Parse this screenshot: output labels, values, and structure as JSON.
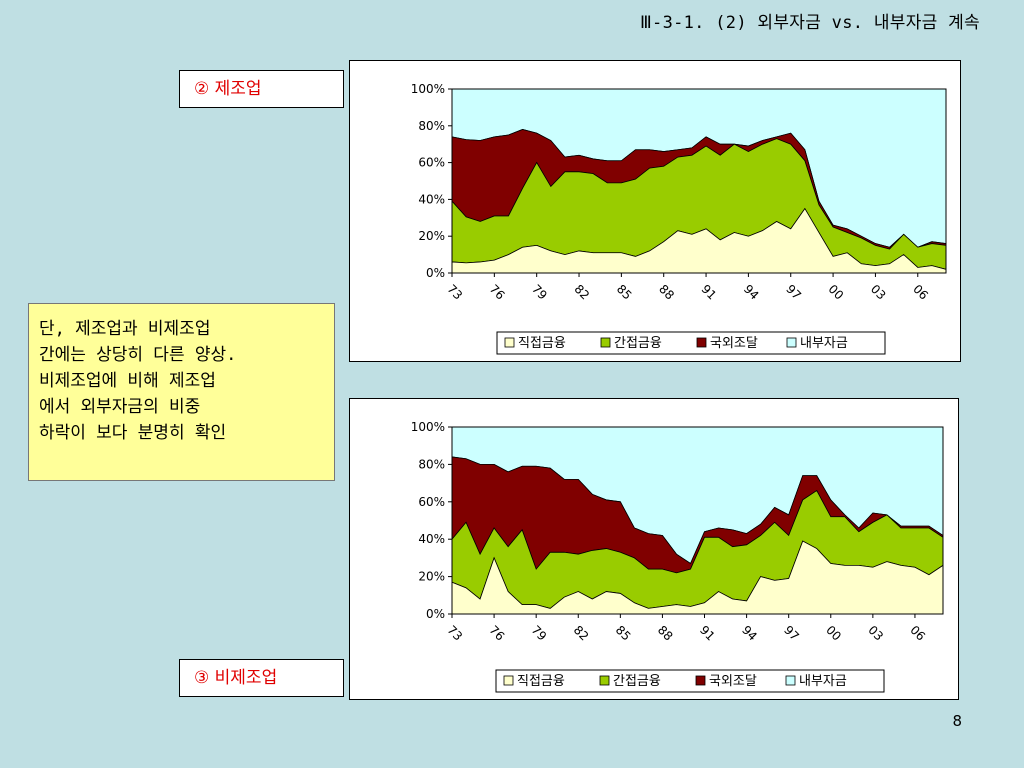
{
  "page": {
    "title": "Ⅲ-3-1. (2) 외부자금 vs. 내부자금 계속",
    "note_lines": [
      "단, 제조업과 비제조업",
      "간에는 상당히 다른 양상.",
      "비제조업에 비해 제조업",
      "에서 외부자금의 비중",
      "하락이 보다 분명히 확인"
    ],
    "page_number": "8"
  },
  "labels": {
    "manufacturing": "② 제조업",
    "non_manufacturing": "③ 비제조업"
  },
  "colors": {
    "direct": "#ffffcc",
    "indirect": "#99cc00",
    "foreign": "#800000",
    "internal": "#ccffff"
  },
  "chart_data": [
    {
      "type": "area",
      "stacked": true,
      "title": "",
      "x": [
        1973,
        1974,
        1975,
        1976,
        1977,
        1978,
        1979,
        1980,
        1981,
        1982,
        1983,
        1984,
        1985,
        1986,
        1987,
        1988,
        1989,
        1990,
        1991,
        1992,
        1993,
        1994,
        1995,
        1996,
        1997,
        1998,
        1999,
        2000,
        2001,
        2002,
        2003,
        2004,
        2005,
        2006,
        2007,
        2008
      ],
      "xticks": [
        "73",
        "76",
        "79",
        "82",
        "85",
        "88",
        "91",
        "94",
        "97",
        "00",
        "03",
        "06"
      ],
      "yticks": [
        "0%",
        "20%",
        "40%",
        "60%",
        "80%",
        "100%"
      ],
      "ylim": [
        0,
        100
      ],
      "legend": "bottom",
      "series": [
        {
          "name": "직접금융",
          "color": "#ffffcc",
          "values": [
            6,
            5.5,
            6,
            7,
            10,
            14,
            15,
            12,
            10,
            12,
            11,
            11,
            11,
            9,
            12,
            17,
            23,
            21,
            24,
            18,
            22,
            20,
            23,
            28,
            24,
            35,
            22,
            9,
            11,
            5,
            4,
            5,
            10,
            3,
            4,
            2
          ]
        },
        {
          "name": "간접금융",
          "color": "#99cc00",
          "values": [
            33,
            25,
            22,
            24,
            21,
            32,
            45,
            35,
            45,
            43,
            43,
            38,
            38,
            42,
            45,
            41,
            40,
            43,
            45,
            46,
            48,
            46,
            47,
            45,
            46,
            26,
            15,
            16,
            11,
            14,
            11,
            8,
            11,
            11,
            12,
            13
          ]
        },
        {
          "name": "국외조달",
          "color": "#800000",
          "values": [
            35,
            42,
            44,
            43,
            44,
            32,
            16,
            25,
            8,
            9,
            8,
            12,
            12,
            16,
            10,
            8,
            4,
            4,
            5,
            6,
            0,
            3,
            2,
            1,
            6,
            6,
            2,
            1,
            2,
            1,
            1,
            1,
            0,
            0,
            1,
            1
          ]
        },
        {
          "name": "내부자금",
          "color": "#ccffff",
          "values": [
            26,
            27.5,
            28,
            26,
            25,
            22,
            24,
            28,
            37,
            36,
            38,
            39,
            39,
            33,
            33,
            34,
            33,
            32,
            26,
            30,
            30,
            31,
            28,
            26,
            24,
            33,
            61,
            74,
            76,
            80,
            84,
            86,
            79,
            86,
            83,
            84
          ]
        }
      ]
    },
    {
      "type": "area",
      "stacked": true,
      "title": "",
      "x": [
        1973,
        1974,
        1975,
        1976,
        1977,
        1978,
        1979,
        1980,
        1981,
        1982,
        1983,
        1984,
        1985,
        1986,
        1987,
        1988,
        1989,
        1990,
        1991,
        1992,
        1993,
        1994,
        1995,
        1996,
        1997,
        1998,
        1999,
        2000,
        2001,
        2002,
        2003,
        2004,
        2005,
        2006,
        2007,
        2008
      ],
      "xticks": [
        "73",
        "76",
        "79",
        "82",
        "85",
        "88",
        "91",
        "94",
        "97",
        "00",
        "03",
        "06"
      ],
      "yticks": [
        "0%",
        "20%",
        "40%",
        "60%",
        "80%",
        "100%"
      ],
      "ylim": [
        0,
        100
      ],
      "legend": "bottom",
      "series": [
        {
          "name": "직접금융",
          "color": "#ffffcc",
          "values": [
            17,
            14,
            8,
            30,
            12,
            5,
            5,
            3,
            9,
            12,
            8,
            12,
            11,
            6,
            3,
            4,
            5,
            4,
            6,
            12,
            8,
            7,
            20,
            18,
            19,
            39,
            35,
            27,
            26,
            26,
            25,
            28,
            26,
            25,
            21,
            26
          ]
        },
        {
          "name": "간접금융",
          "color": "#99cc00",
          "values": [
            23,
            35,
            24,
            16,
            24,
            40,
            19,
            30,
            24,
            20,
            26,
            23,
            22,
            24,
            21,
            20,
            17,
            20,
            35,
            29,
            28,
            30,
            22,
            31,
            23,
            22,
            31,
            25,
            26,
            18,
            24,
            25,
            20,
            21,
            25,
            15
          ]
        },
        {
          "name": "국외조달",
          "color": "#800000",
          "values": [
            44,
            34,
            48,
            34,
            40,
            34,
            55,
            45,
            39,
            40,
            30,
            26,
            27,
            16,
            19,
            18,
            10,
            3,
            3,
            5,
            9,
            6,
            6,
            8,
            11,
            13,
            8,
            9,
            1,
            2,
            5,
            0,
            1,
            1,
            1,
            1
          ]
        },
        {
          "name": "내부자금",
          "color": "#ccffff",
          "values": [
            16,
            17,
            20,
            20,
            24,
            21,
            21,
            22,
            28,
            28,
            36,
            39,
            40,
            54,
            57,
            58,
            68,
            73,
            56,
            54,
            55,
            57,
            52,
            43,
            47,
            26,
            26,
            39,
            47,
            54,
            46,
            47,
            53,
            53,
            53,
            58
          ]
        }
      ]
    }
  ]
}
